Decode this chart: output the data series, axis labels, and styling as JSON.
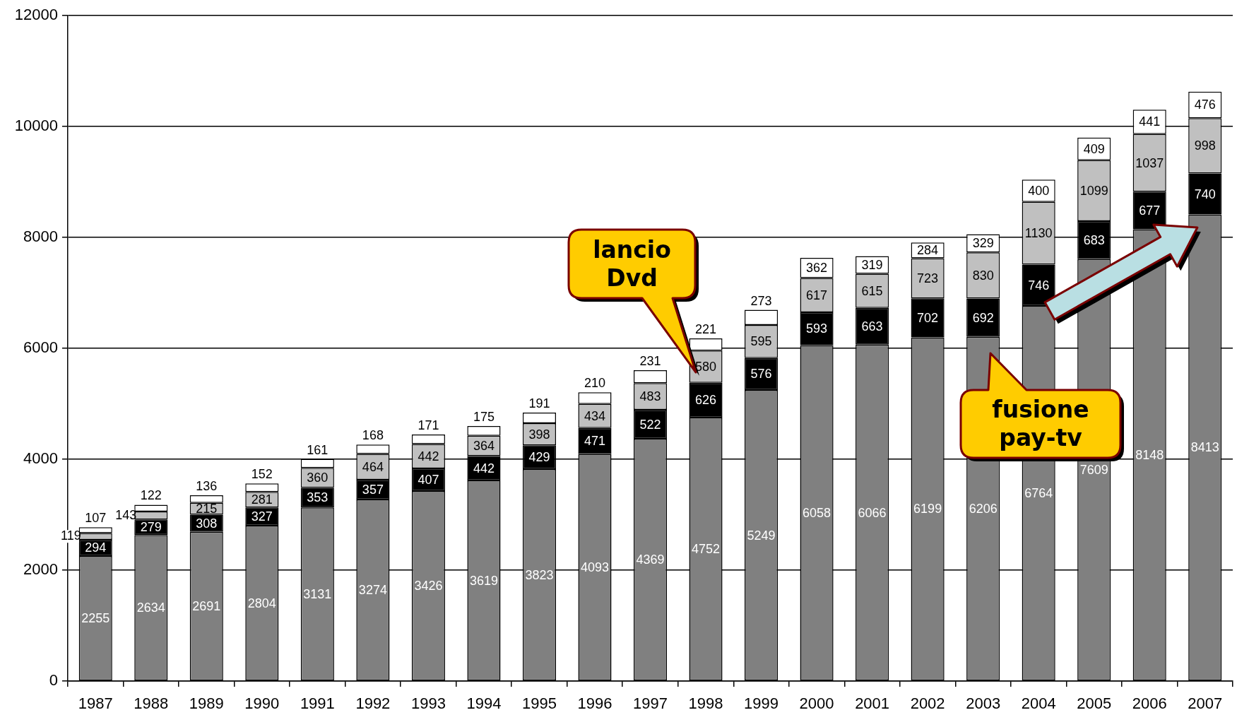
{
  "chart_data": {
    "type": "bar",
    "stacked": true,
    "categories": [
      "1987",
      "1988",
      "1989",
      "1990",
      "1991",
      "1992",
      "1993",
      "1994",
      "1995",
      "1996",
      "1997",
      "1998",
      "1999",
      "2000",
      "2001",
      "2002",
      "2003",
      "2004",
      "2005",
      "2006",
      "2007"
    ],
    "series": [
      {
        "color": "#808080",
        "values": [
          2255,
          2634,
          2691,
          2804,
          3131,
          3274,
          3426,
          3619,
          3823,
          4093,
          4369,
          4752,
          5249,
          6058,
          6066,
          6199,
          6206,
          6764,
          7609,
          8148,
          8413
        ]
      },
      {
        "color": "#000000",
        "values": [
          294,
          279,
          308,
          327,
          353,
          357,
          407,
          442,
          429,
          471,
          522,
          626,
          576,
          593,
          663,
          702,
          692,
          746,
          683,
          677,
          740
        ]
      },
      {
        "color": "#c0c0c0",
        "values": [
          119,
          143,
          215,
          281,
          360,
          464,
          442,
          364,
          398,
          434,
          483,
          580,
          595,
          617,
          615,
          723,
          830,
          1130,
          1099,
          1037,
          998
        ]
      },
      {
        "color": "#ffffff",
        "values": [
          107,
          122,
          136,
          152,
          161,
          168,
          171,
          175,
          191,
          210,
          231,
          221,
          273,
          362,
          319,
          284,
          329,
          400,
          409,
          441,
          476
        ]
      }
    ],
    "ylim": [
      0,
      12000
    ],
    "yticks": [
      0,
      2000,
      4000,
      6000,
      8000,
      10000,
      12000
    ],
    "grid": "y",
    "data_labels": true,
    "annotations": [
      "lancio Dvd",
      "fusione pay-tv"
    ]
  }
}
